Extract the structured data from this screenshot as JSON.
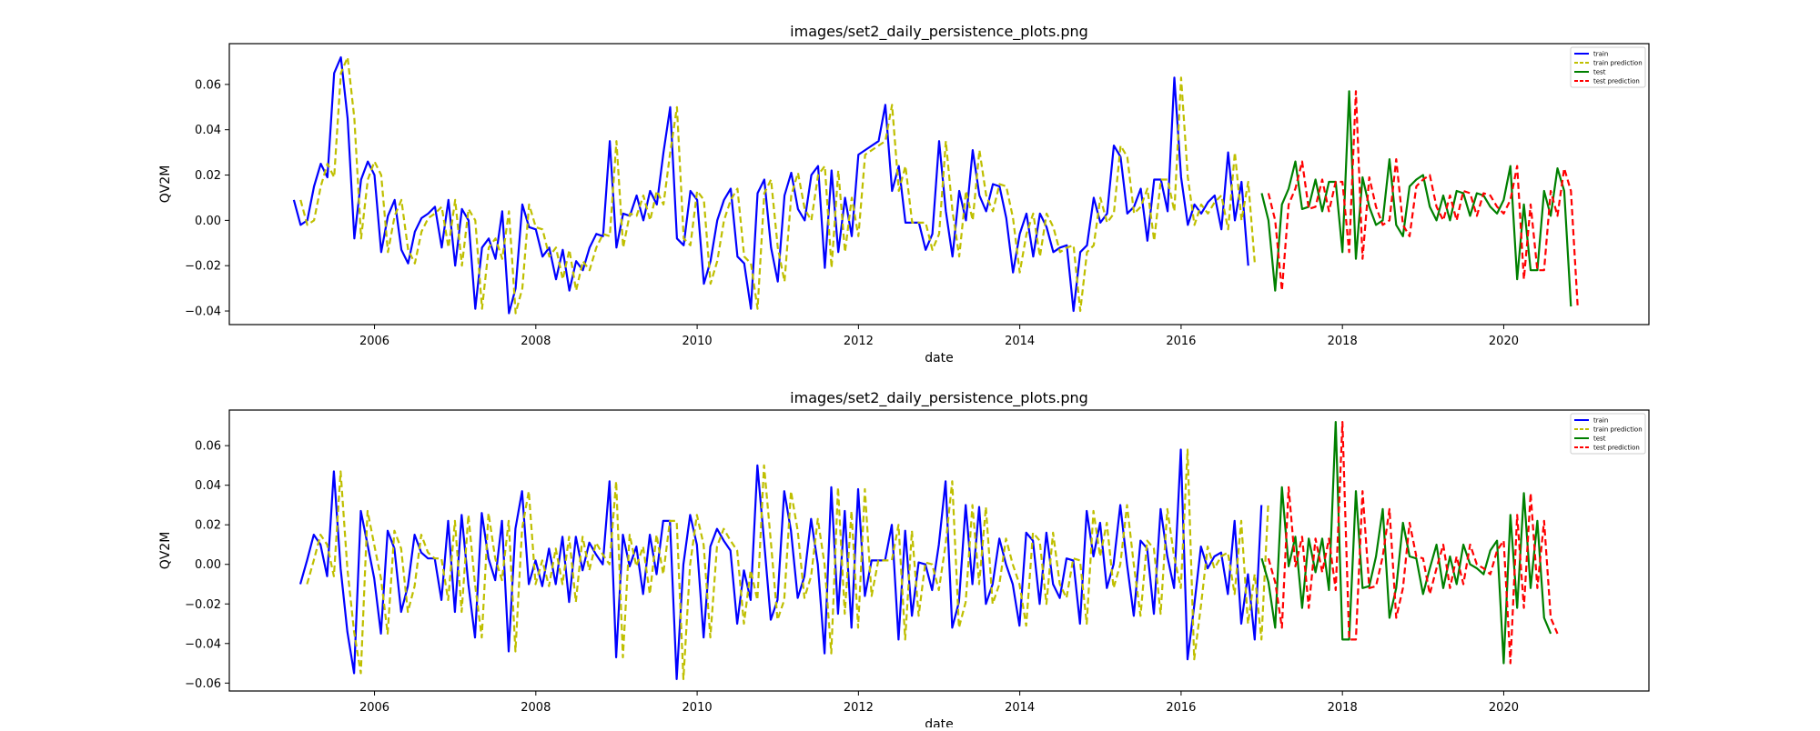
{
  "chart_data": [
    {
      "type": "line",
      "title": "images/set2_daily_persistence_plots.png",
      "xlabel": "date",
      "ylabel": "QV2M",
      "xlim": [
        2004.2,
        2021.8
      ],
      "ylim": [
        -0.046,
        0.078
      ],
      "xticks": [
        2006,
        2008,
        2010,
        2012,
        2014,
        2016,
        2018,
        2020
      ],
      "xtick_labels": [
        "2006",
        "2008",
        "2010",
        "2012",
        "2014",
        "2016",
        "2018",
        "2020"
      ],
      "yticks": [
        -0.04,
        -0.02,
        0.0,
        0.02,
        0.04,
        0.06
      ],
      "ytick_labels": [
        "−0.04",
        "−0.02",
        "0.00",
        "0.02",
        "0.04",
        "0.06"
      ],
      "legend_position": "top-right",
      "grid": false,
      "train": {
        "start": 2005.0,
        "step": 0.08333,
        "values": [
          0.009,
          -0.002,
          0.0,
          0.015,
          0.025,
          0.019,
          0.065,
          0.072,
          0.045,
          -0.008,
          0.018,
          0.026,
          0.02,
          -0.014,
          0.002,
          0.009,
          -0.013,
          -0.019,
          -0.005,
          0.001,
          0.003,
          0.006,
          -0.012,
          0.009,
          -0.02,
          0.005,
          0.0,
          -0.039,
          -0.012,
          -0.008,
          -0.017,
          0.004,
          -0.041,
          -0.03,
          0.007,
          -0.003,
          -0.004,
          -0.016,
          -0.012,
          -0.026,
          -0.013,
          -0.031,
          -0.018,
          -0.022,
          -0.012,
          -0.006,
          -0.007,
          0.035,
          -0.012,
          0.003,
          0.002,
          0.011,
          0.0,
          0.013,
          0.007,
          0.03,
          0.05,
          -0.008,
          -0.011,
          0.013,
          0.009,
          -0.028,
          -0.018,
          0.0,
          0.009,
          0.014,
          -0.016,
          -0.019,
          -0.039,
          0.012,
          0.018,
          -0.012,
          -0.027,
          0.011,
          0.021,
          0.005,
          0.0,
          0.02,
          0.024,
          -0.021,
          0.022,
          -0.014,
          0.01,
          -0.007,
          0.029,
          0.031,
          0.033,
          0.035,
          0.051,
          0.013,
          0.024,
          -0.001,
          -0.001,
          -0.001,
          -0.013,
          -0.006,
          0.035,
          0.004,
          -0.016,
          0.013,
          0.0,
          0.031,
          0.011,
          0.004,
          0.016,
          0.015,
          0.001,
          -0.023,
          -0.006,
          0.003,
          -0.016,
          0.003,
          -0.003,
          -0.014,
          -0.012,
          -0.011,
          -0.04,
          -0.014,
          -0.011,
          0.01,
          -0.001,
          0.003,
          0.033,
          0.028,
          0.003,
          0.006,
          0.014,
          -0.009,
          0.018,
          0.018,
          0.004,
          0.063,
          0.019,
          -0.002,
          0.007,
          0.003,
          0.008,
          0.011,
          -0.004,
          0.03,
          0.0,
          0.017,
          -0.02
        ]
      },
      "test": {
        "start": 2017.0,
        "step": 0.08333,
        "values": [
          0.012,
          0.0,
          -0.031,
          0.007,
          0.014,
          0.026,
          0.005,
          0.006,
          0.018,
          0.004,
          0.017,
          0.017,
          -0.014,
          0.057,
          -0.017,
          0.019,
          0.006,
          -0.002,
          0.0,
          0.027,
          -0.002,
          -0.007,
          0.015,
          0.018,
          0.02,
          0.006,
          0.0,
          0.011,
          0.0,
          0.013,
          0.012,
          0.002,
          0.012,
          0.011,
          0.006,
          0.003,
          0.009,
          0.024,
          -0.026,
          0.007,
          -0.022,
          -0.022,
          0.013,
          0.002,
          0.023,
          0.013,
          -0.038
        ]
      },
      "train_prediction": {
        "source": "train",
        "lag": 1
      },
      "test_prediction": {
        "source": "test",
        "lag": 1
      }
    },
    {
      "type": "line",
      "title": "images/set2_daily_persistence_plots.png",
      "xlabel": "date",
      "ylabel": "QV2M",
      "xlim": [
        2004.2,
        2021.8
      ],
      "ylim": [
        -0.064,
        0.078
      ],
      "xticks": [
        2006,
        2008,
        2010,
        2012,
        2014,
        2016,
        2018,
        2020
      ],
      "xtick_labels": [
        "2006",
        "2008",
        "2010",
        "2012",
        "2014",
        "2016",
        "2018",
        "2020"
      ],
      "yticks": [
        -0.06,
        -0.04,
        -0.02,
        0.0,
        0.02,
        0.04,
        0.06
      ],
      "ytick_labels": [
        "−0.06",
        "−0.04",
        "−0.02",
        "0.00",
        "0.02",
        "0.04",
        "0.06"
      ],
      "legend_position": "top-right",
      "grid": false,
      "train": {
        "start": 2005.08,
        "step": 0.08333,
        "values": [
          -0.01,
          0.002,
          0.015,
          0.01,
          -0.006,
          0.047,
          -0.002,
          -0.034,
          -0.055,
          0.027,
          0.01,
          -0.007,
          -0.035,
          0.017,
          0.008,
          -0.024,
          -0.011,
          0.015,
          0.006,
          0.003,
          0.003,
          -0.018,
          0.022,
          -0.024,
          0.025,
          -0.01,
          -0.037,
          0.026,
          0.003,
          -0.008,
          0.022,
          -0.044,
          0.018,
          0.037,
          -0.01,
          0.002,
          -0.011,
          0.008,
          -0.01,
          0.014,
          -0.019,
          0.014,
          -0.003,
          0.011,
          0.005,
          0.0,
          0.042,
          -0.047,
          0.015,
          -0.001,
          0.009,
          -0.015,
          0.015,
          -0.005,
          0.022,
          0.022,
          -0.058,
          0.0,
          0.025,
          0.01,
          -0.037,
          0.009,
          0.018,
          0.012,
          0.007,
          -0.03,
          -0.003,
          -0.018,
          0.05,
          0.012,
          -0.028,
          -0.018,
          0.037,
          0.017,
          -0.017,
          -0.006,
          0.023,
          0.0,
          -0.045,
          0.039,
          -0.025,
          0.027,
          -0.032,
          0.038,
          -0.016,
          0.002,
          0.002,
          0.002,
          0.02,
          -0.038,
          0.017,
          -0.026,
          0.001,
          0.0,
          -0.013,
          0.01,
          0.042,
          -0.032,
          -0.019,
          0.03,
          -0.01,
          0.029,
          -0.02,
          -0.01,
          0.013,
          0.0,
          -0.01,
          -0.031,
          0.016,
          0.012,
          -0.02,
          0.016,
          -0.01,
          -0.017,
          0.003,
          0.002,
          -0.03,
          0.027,
          0.004,
          0.021,
          -0.012,
          0.0,
          0.03,
          0.0,
          -0.026,
          0.012,
          0.008,
          -0.025,
          0.028,
          0.004,
          -0.012,
          0.058,
          -0.048,
          -0.021,
          0.009,
          -0.002,
          0.004,
          0.006,
          -0.015,
          0.022,
          -0.03,
          -0.005,
          -0.038,
          0.03
        ]
      },
      "test": {
        "start": 2017.0,
        "step": 0.08333,
        "values": [
          0.003,
          -0.009,
          -0.032,
          0.039,
          -0.001,
          0.014,
          -0.022,
          0.013,
          -0.004,
          0.013,
          -0.013,
          0.072,
          -0.038,
          -0.038,
          0.037,
          -0.012,
          -0.011,
          0.004,
          0.028,
          -0.027,
          -0.012,
          0.021,
          0.004,
          0.003,
          -0.015,
          -0.002,
          0.01,
          -0.012,
          0.004,
          -0.01,
          0.01,
          0.0,
          -0.002,
          -0.005,
          0.007,
          0.012,
          -0.05,
          0.025,
          -0.022,
          0.036,
          -0.012,
          0.022,
          -0.027,
          -0.035
        ]
      },
      "train_prediction": {
        "source": "train",
        "lag": 1
      },
      "test_prediction": {
        "source": "test",
        "lag": 1
      }
    }
  ],
  "legend": {
    "items": [
      {
        "label": "train",
        "color": "#0000ff",
        "dash": "solid"
      },
      {
        "label": "train prediction",
        "color": "#bfbf00",
        "dash": "dashed"
      },
      {
        "label": "test",
        "color": "#008000",
        "dash": "solid"
      },
      {
        "label": "test prediction",
        "color": "#ff0000",
        "dash": "dashed"
      }
    ]
  }
}
